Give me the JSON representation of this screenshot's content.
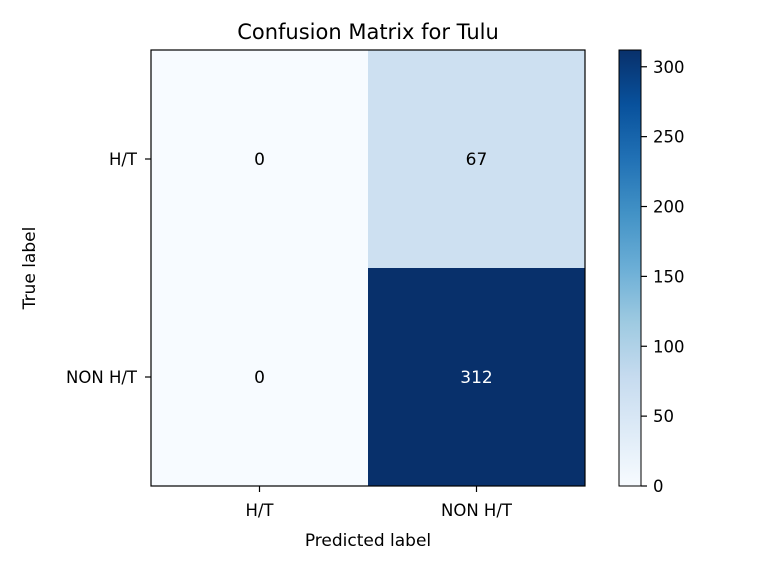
{
  "chart_data": {
    "type": "heatmap",
    "title": "Confusion Matrix for Tulu",
    "xlabel": "Predicted label",
    "ylabel": "True label",
    "x_categories": [
      "H/T",
      "NON H/T"
    ],
    "y_categories": [
      "H/T",
      "NON H/T"
    ],
    "values": [
      [
        0,
        67
      ],
      [
        0,
        312
      ]
    ],
    "colormap": "Blues",
    "colorbar": {
      "range": [
        0,
        312
      ],
      "ticks": [
        0,
        50,
        100,
        150,
        200,
        250,
        300
      ]
    }
  }
}
